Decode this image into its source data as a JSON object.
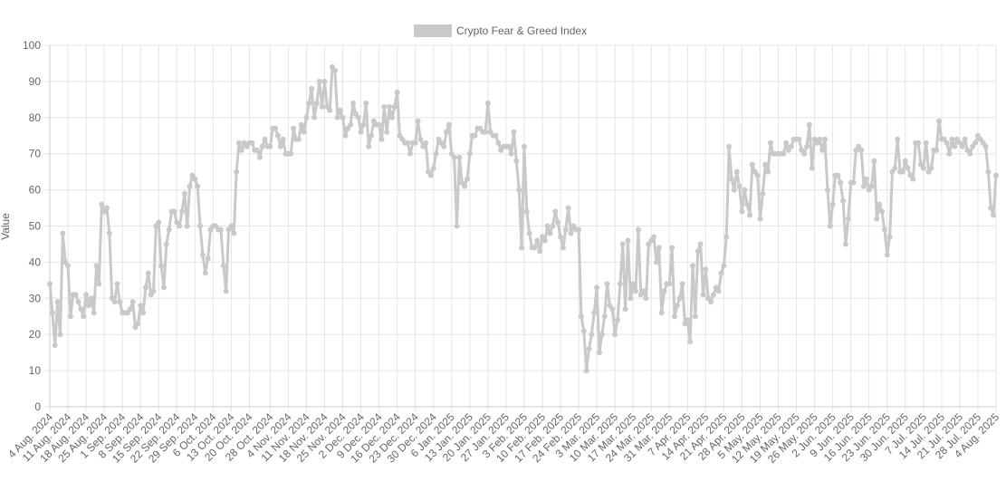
{
  "chart_data": {
    "type": "line",
    "ylabel": "Value",
    "series": [
      {
        "name": "Crypto Fear & Greed Index",
        "color": "#c9c9c9",
        "values": [
          34,
          26,
          17,
          29,
          20,
          48,
          40,
          39,
          25,
          31,
          31,
          29,
          27,
          25,
          31,
          28,
          30,
          26,
          39,
          34,
          56,
          54,
          55,
          48,
          30,
          29,
          34,
          29,
          26,
          26,
          26,
          27,
          29,
          22,
          23,
          28,
          26,
          33,
          37,
          31,
          32,
          50,
          51,
          39,
          33,
          45,
          49,
          54,
          54,
          51,
          50,
          54,
          59,
          50,
          61,
          64,
          63,
          61,
          50,
          42,
          37,
          41,
          49,
          50,
          50,
          49,
          49,
          39,
          32,
          49,
          50,
          48,
          65,
          73,
          71,
          73,
          72,
          73,
          73,
          71,
          71,
          69,
          72,
          74,
          72,
          72,
          77,
          77,
          75,
          72,
          74,
          70,
          70,
          70,
          77,
          74,
          74,
          78,
          76,
          80,
          84,
          88,
          80,
          84,
          90,
          83,
          90,
          83,
          82,
          94,
          93,
          80,
          82,
          80,
          75,
          77,
          78,
          84,
          81,
          80,
          76,
          78,
          84,
          72,
          75,
          79,
          78,
          78,
          74,
          83,
          76,
          83,
          80,
          83,
          87,
          75,
          74,
          73,
          73,
          70,
          73,
          73,
          79,
          74,
          72,
          73,
          65,
          64,
          66,
          70,
          74,
          73,
          72,
          76,
          78,
          70,
          69,
          50,
          69,
          62,
          61,
          63,
          70,
          75,
          75,
          77,
          77,
          76,
          76,
          84,
          76,
          75,
          75,
          73,
          71,
          72,
          72,
          72,
          70,
          76,
          68,
          60,
          44,
          72,
          54,
          48,
          44,
          44,
          46,
          43,
          47,
          46,
          50,
          48,
          50,
          54,
          51,
          47,
          44,
          49,
          55,
          48,
          50,
          49,
          49,
          25,
          21,
          10,
          16,
          20,
          26,
          33,
          15,
          20,
          25,
          34,
          28,
          27,
          20,
          24,
          34,
          45,
          27,
          46,
          30,
          34,
          32,
          49,
          31,
          32,
          30,
          45,
          46,
          47,
          40,
          44,
          26,
          32,
          34,
          34,
          44,
          25,
          28,
          30,
          34,
          23,
          24,
          18,
          39,
          25,
          43,
          45,
          31,
          38,
          30,
          29,
          31,
          33,
          32,
          37,
          39,
          47,
          72,
          63,
          60,
          65,
          61,
          54,
          60,
          56,
          53,
          67,
          65,
          64,
          52,
          59,
          67,
          65,
          73,
          70,
          70,
          70,
          70,
          70,
          73,
          71,
          72,
          74,
          74,
          74,
          71,
          70,
          72,
          78,
          66,
          74,
          73,
          74,
          71,
          74,
          60,
          50,
          56,
          64,
          64,
          62,
          57,
          45,
          52,
          62,
          62,
          71,
          72,
          71,
          61,
          63,
          60,
          61,
          68,
          52,
          56,
          54,
          49,
          42,
          47,
          65,
          66,
          74,
          65,
          65,
          68,
          66,
          64,
          63,
          73,
          73,
          67,
          66,
          73,
          65,
          66,
          71,
          71,
          79,
          74,
          74,
          73,
          70,
          74,
          72,
          74,
          73,
          72,
          74,
          71,
          70,
          72,
          73,
          75,
          74,
          73,
          72,
          65,
          55,
          53,
          64
        ]
      }
    ],
    "categories": [
      "4 Aug. 2024",
      null,
      null,
      null,
      null,
      null,
      null,
      "11 Aug. 2024",
      null,
      null,
      null,
      null,
      null,
      null,
      "18 Aug. 2024",
      null,
      null,
      null,
      null,
      null,
      null,
      "25 Aug. 2024",
      null,
      null,
      null,
      null,
      null,
      null,
      "1 Sep. 2024",
      null,
      null,
      null,
      null,
      null,
      null,
      "8 Sep. 2024",
      null,
      null,
      null,
      null,
      null,
      null,
      "15 Sep. 2024",
      null,
      null,
      null,
      null,
      null,
      null,
      "22 Sep. 2024",
      null,
      null,
      null,
      null,
      null,
      null,
      "29 Sep. 2024",
      null,
      null,
      null,
      null,
      null,
      null,
      "6 Oct. 2024",
      null,
      null,
      null,
      null,
      null,
      null,
      "13 Oct. 2024",
      null,
      null,
      null,
      null,
      null,
      null,
      "20 Oct. 2024",
      null,
      null,
      null,
      null,
      null,
      null,
      null,
      "28 Oct. 2024",
      null,
      null,
      null,
      null,
      null,
      null,
      "4 Nov. 2024",
      null,
      null,
      null,
      null,
      null,
      null,
      "11 Nov. 2024",
      null,
      null,
      null,
      null,
      null,
      null,
      "18 Nov. 2024",
      null,
      null,
      null,
      null,
      null,
      null,
      "25 Nov. 2024",
      null,
      null,
      null,
      null,
      null,
      null,
      "2 Dec. 2024",
      null,
      null,
      null,
      null,
      null,
      null,
      "9 Dec. 2024",
      null,
      null,
      null,
      null,
      null,
      null,
      "16 Dec. 2024",
      null,
      null,
      null,
      null,
      null,
      null,
      "23 Dec. 2024",
      null,
      null,
      null,
      null,
      null,
      null,
      "30 Dec. 2024",
      null,
      null,
      null,
      null,
      null,
      null,
      "6 Jan. 2025",
      null,
      null,
      null,
      null,
      null,
      null,
      "13 Jan. 2025",
      null,
      null,
      null,
      null,
      null,
      null,
      "20 Jan. 2025",
      null,
      null,
      null,
      null,
      null,
      null,
      "27 Jan. 2025",
      null,
      null,
      null,
      null,
      null,
      null,
      "3 Feb. 2025",
      null,
      null,
      null,
      null,
      null,
      null,
      "10 Feb. 2025",
      null,
      null,
      null,
      null,
      null,
      null,
      "17 Feb. 2025",
      null,
      null,
      null,
      null,
      null,
      null,
      "24 Feb. 2025",
      null,
      null,
      null,
      null,
      null,
      null,
      "3 Mar. 2025",
      null,
      null,
      null,
      null,
      null,
      null,
      "10 Mar. 2025",
      null,
      null,
      null,
      null,
      null,
      null,
      "17 Mar. 2025",
      null,
      null,
      null,
      null,
      null,
      null,
      "24 Mar. 2025",
      null,
      null,
      null,
      null,
      null,
      null,
      "31 Mar. 2025",
      null,
      null,
      null,
      null,
      null,
      null,
      "7 Apr. 2025",
      null,
      null,
      null,
      null,
      null,
      null,
      "14 Apr. 2025",
      null,
      null,
      null,
      null,
      null,
      null,
      "21 Apr. 2025",
      null,
      null,
      null,
      null,
      null,
      null,
      "28 Apr. 2025",
      null,
      null,
      null,
      null,
      null,
      null,
      "5 May. 2025",
      null,
      null,
      null,
      null,
      null,
      null,
      "12 May. 2025",
      null,
      null,
      null,
      null,
      null,
      null,
      "19 May. 2025",
      null,
      null,
      null,
      null,
      null,
      null,
      "26 May. 2025",
      null,
      null,
      null,
      null,
      null,
      null,
      "2 Jun. 2025",
      null,
      null,
      null,
      null,
      null,
      null,
      "9 Jun. 2025",
      null,
      null,
      null,
      null,
      null,
      null,
      "16 Jun. 2025",
      null,
      null,
      null,
      null,
      null,
      null,
      "23 Jun. 2025",
      null,
      null,
      null,
      null,
      null,
      null,
      "30 Jun. 2025",
      null,
      null,
      null,
      null,
      null,
      null,
      "7 Jul. 2025",
      null,
      null,
      null,
      null,
      null,
      null,
      "14 Jul. 2025",
      null,
      null,
      null,
      null,
      null,
      null,
      "21 Jul. 2025",
      null,
      null,
      null,
      null,
      null,
      null,
      "28 Jul. 2025",
      null,
      null,
      null,
      null,
      null,
      null,
      "4 Aug. 2025"
    ],
    "ylim": [
      0,
      100
    ],
    "yticks": [
      0,
      10,
      20,
      30,
      40,
      50,
      60,
      70,
      80,
      90,
      100
    ],
    "grid": true,
    "legend": "top"
  }
}
